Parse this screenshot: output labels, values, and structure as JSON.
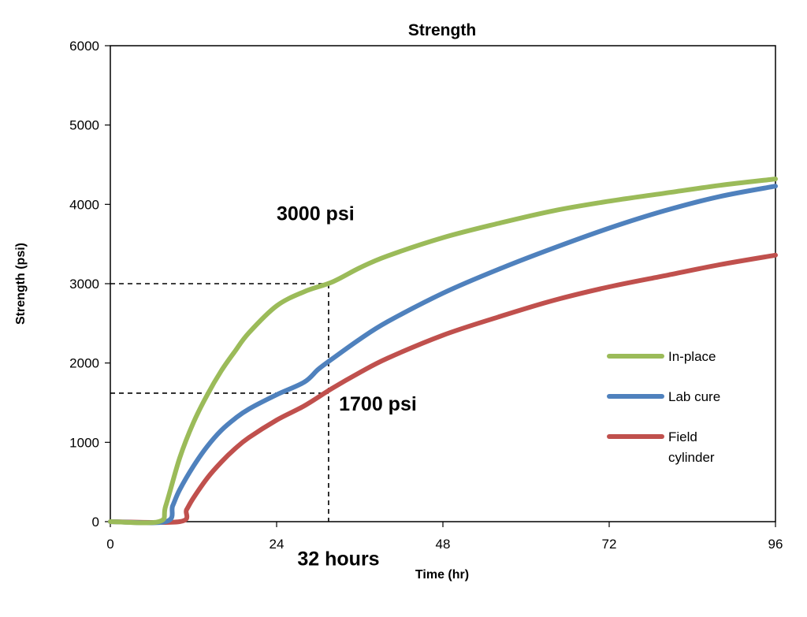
{
  "chart_data": {
    "type": "line",
    "title": "Strength",
    "xlabel": "Time (hr)",
    "ylabel": "Strength (psi)",
    "xlim": [
      0,
      96
    ],
    "ylim": [
      0,
      6000
    ],
    "x_ticks": [
      "0",
      "24",
      "48",
      "72",
      "96"
    ],
    "y_ticks": [
      "0",
      "1000",
      "2000",
      "3000",
      "4000",
      "5000",
      "6000"
    ],
    "grid": false,
    "legend_position": "right",
    "series": [
      {
        "name": "In-place",
        "color": "#9bbb59",
        "points": [
          [
            0,
            0
          ],
          [
            7,
            0
          ],
          [
            8,
            200
          ],
          [
            10,
            800
          ],
          [
            12,
            1250
          ],
          [
            14,
            1600
          ],
          [
            16,
            1900
          ],
          [
            18,
            2150
          ],
          [
            20,
            2380
          ],
          [
            24,
            2720
          ],
          [
            28,
            2900
          ],
          [
            32,
            3020
          ],
          [
            36,
            3200
          ],
          [
            40,
            3350
          ],
          [
            48,
            3580
          ],
          [
            56,
            3760
          ],
          [
            64,
            3920
          ],
          [
            72,
            4040
          ],
          [
            80,
            4140
          ],
          [
            88,
            4240
          ],
          [
            96,
            4320
          ]
        ]
      },
      {
        "name": "Lab cure",
        "color": "#4f81bd",
        "points": [
          [
            0,
            0
          ],
          [
            8,
            0
          ],
          [
            9,
            200
          ],
          [
            10,
            400
          ],
          [
            12,
            700
          ],
          [
            14,
            950
          ],
          [
            16,
            1150
          ],
          [
            18,
            1300
          ],
          [
            20,
            1420
          ],
          [
            24,
            1600
          ],
          [
            28,
            1760
          ],
          [
            30,
            1920
          ],
          [
            32,
            2050
          ],
          [
            36,
            2300
          ],
          [
            40,
            2520
          ],
          [
            48,
            2880
          ],
          [
            56,
            3180
          ],
          [
            64,
            3450
          ],
          [
            72,
            3700
          ],
          [
            80,
            3920
          ],
          [
            88,
            4100
          ],
          [
            96,
            4230
          ]
        ]
      },
      {
        "name": "Field\ncylinder",
        "color": "#c0504d",
        "points": [
          [
            0,
            0
          ],
          [
            10,
            0
          ],
          [
            11,
            150
          ],
          [
            12,
            300
          ],
          [
            14,
            550
          ],
          [
            16,
            750
          ],
          [
            18,
            920
          ],
          [
            20,
            1060
          ],
          [
            24,
            1280
          ],
          [
            28,
            1460
          ],
          [
            32,
            1680
          ],
          [
            36,
            1880
          ],
          [
            40,
            2060
          ],
          [
            48,
            2350
          ],
          [
            56,
            2580
          ],
          [
            64,
            2790
          ],
          [
            72,
            2960
          ],
          [
            80,
            3100
          ],
          [
            88,
            3240
          ],
          [
            96,
            3360
          ]
        ]
      }
    ],
    "reference_lines": [
      {
        "y": 3000,
        "x_end": 31.5
      },
      {
        "y": 1620,
        "x_end": 31.5
      },
      {
        "x": 31.5,
        "y_end": 3000
      }
    ],
    "annotations": [
      {
        "text": "3000 psi",
        "x": 24,
        "y": 3800
      },
      {
        "text": "1700 psi",
        "x": 33,
        "y": 1400
      },
      {
        "text": "32 hours",
        "x": 27,
        "y": -550
      }
    ]
  }
}
